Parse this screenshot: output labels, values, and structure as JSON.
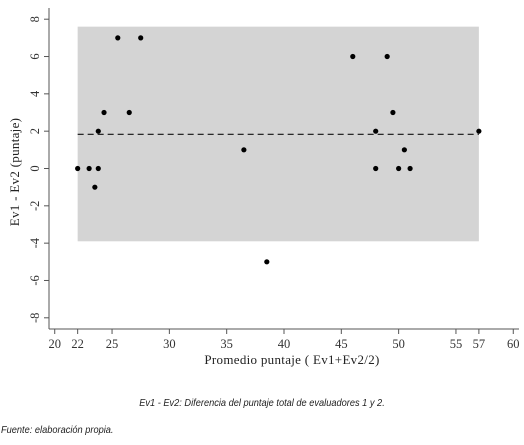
{
  "chart_data": {
    "type": "scatter",
    "title": "",
    "xlabel": "Promedio puntaje ( Ev1+Ev2/2)",
    "ylabel": "Ev1 - Ev2 (puntaje)",
    "xlim": [
      19.5,
      60.5
    ],
    "ylim": [
      -8.6,
      8.6
    ],
    "x_ticks": [
      20,
      22,
      25,
      30,
      35,
      40,
      45,
      50,
      55,
      57,
      60
    ],
    "y_ticks": [
      -8,
      -6,
      -4,
      -2,
      0,
      2,
      4,
      6,
      8
    ],
    "shaded_band": {
      "x": [
        22,
        57
      ],
      "y": [
        -3.9,
        7.6
      ],
      "color": "#d4d4d4"
    },
    "reference_line": {
      "y": 1.83,
      "style": "dashed"
    },
    "points": [
      {
        "x": 22,
        "y": 0
      },
      {
        "x": 23,
        "y": 0
      },
      {
        "x": 23.5,
        "y": -1
      },
      {
        "x": 23.8,
        "y": 0
      },
      {
        "x": 23.8,
        "y": 2
      },
      {
        "x": 24.3,
        "y": 3
      },
      {
        "x": 25.5,
        "y": 7
      },
      {
        "x": 26.5,
        "y": 3
      },
      {
        "x": 27.5,
        "y": 7
      },
      {
        "x": 36.5,
        "y": 1
      },
      {
        "x": 38.5,
        "y": -5
      },
      {
        "x": 46,
        "y": 6
      },
      {
        "x": 48,
        "y": 2
      },
      {
        "x": 48,
        "y": 0
      },
      {
        "x": 49,
        "y": 6
      },
      {
        "x": 49.5,
        "y": 3
      },
      {
        "x": 50,
        "y": 0
      },
      {
        "x": 50.5,
        "y": 1
      },
      {
        "x": 51,
        "y": 0
      },
      {
        "x": 57,
        "y": 2
      }
    ],
    "grid": false,
    "legend": "none",
    "colors": {
      "points": "#000000",
      "band": "#d4d4d4",
      "axis": "#555555"
    }
  },
  "caption": "Ev1 - Ev2: Diferencia del puntaje total de evaluadores 1 y 2.",
  "source": "Fuente: elaboración propia."
}
